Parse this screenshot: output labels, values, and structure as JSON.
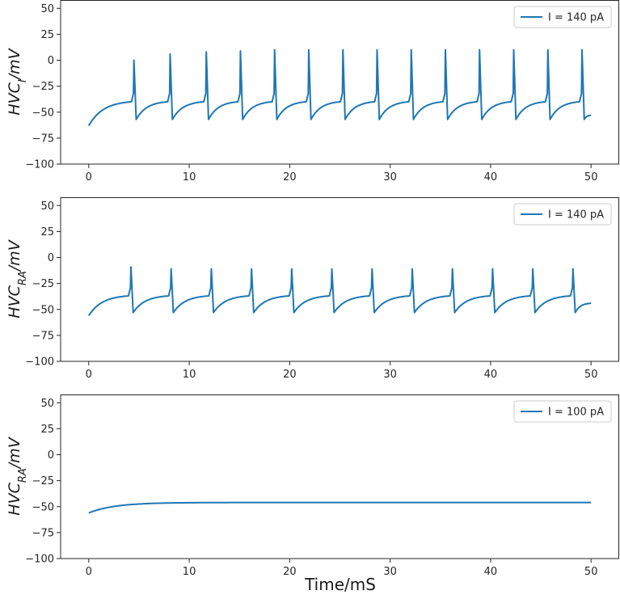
{
  "figure": {
    "xlabel": "Time/mS"
  },
  "colors": {
    "line": "#1f77b4",
    "axes": "#262626",
    "legend_border": "#cccccc",
    "background": "#ffffff"
  },
  "chart_data": [
    {
      "type": "line",
      "ylabel": {
        "main": "HVC",
        "sub": "I",
        "unit": "/mV"
      },
      "legend": "I = 140 pA",
      "legend_loc": "upper right",
      "xlim": [
        -2.8,
        52.8
      ],
      "ylim": [
        -100,
        58
      ],
      "xticks": [
        0,
        10,
        20,
        30,
        40,
        50
      ],
      "yticks": [
        -100,
        -75,
        -50,
        -25,
        0,
        25,
        50
      ],
      "series": [
        {
          "name": "I = 140 pA",
          "model": "spike_train",
          "start": -63,
          "t_end": 50,
          "spike_times": [
            4.5,
            8.1,
            11.7,
            15.1,
            18.5,
            21.9,
            25.3,
            28.7,
            32.1,
            35.5,
            38.9,
            42.3,
            45.7,
            49.1
          ],
          "peaks": [
            0,
            6,
            8,
            9,
            10,
            10,
            10,
            10,
            10,
            10,
            10,
            10,
            10,
            10
          ],
          "reset": -57,
          "pre": -40,
          "end_value": -53
        }
      ]
    },
    {
      "type": "line",
      "ylabel": {
        "main": "HVC",
        "sub": "RA",
        "unit": "/mV"
      },
      "legend": "I = 140 pA",
      "legend_loc": "upper right",
      "xlim": [
        -2.8,
        52.8
      ],
      "ylim": [
        -100,
        58
      ],
      "xticks": [
        0,
        10,
        20,
        30,
        40,
        50
      ],
      "yticks": [
        -100,
        -75,
        -50,
        -25,
        0,
        25,
        50
      ],
      "series": [
        {
          "name": "I = 140 pA",
          "model": "spike_train",
          "start": -56,
          "t_end": 50,
          "spike_times": [
            4.2,
            8.2,
            12.2,
            16.2,
            20.2,
            24.2,
            28.2,
            32.2,
            36.2,
            40.2,
            44.2,
            48.2
          ],
          "peaks": [
            -9,
            -11,
            -11,
            -11,
            -11,
            -11,
            -11,
            -11,
            -11,
            -11,
            -11,
            -11
          ],
          "reset": -53,
          "pre": -37,
          "end_value": -44
        }
      ]
    },
    {
      "type": "line",
      "ylabel": {
        "main": "HVC",
        "sub": "RA",
        "unit": "/mV"
      },
      "legend": "I = 100 pA",
      "legend_loc": "upper right",
      "xlim": [
        -2.8,
        52.8
      ],
      "ylim": [
        -100,
        58
      ],
      "xticks": [
        0,
        10,
        20,
        30,
        40,
        50
      ],
      "yticks": [
        -100,
        -75,
        -50,
        -25,
        0,
        25,
        50
      ],
      "series": [
        {
          "name": "I = 100 pA",
          "model": "relaxation",
          "start": -56,
          "steady": -46,
          "tau": 2.6,
          "t_end": 50
        }
      ]
    }
  ]
}
